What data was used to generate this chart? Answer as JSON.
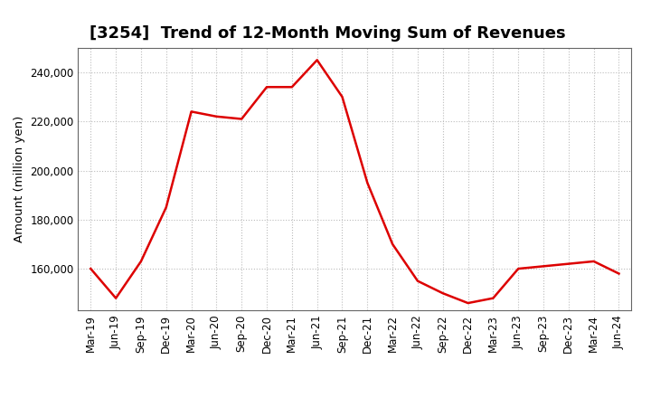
{
  "title": "[3254]  Trend of 12-Month Moving Sum of Revenues",
  "ylabel": "Amount (million yen)",
  "line_color": "#dd0000",
  "line_width": 1.8,
  "background_color": "#ffffff",
  "grid_color": "#bbbbbb",
  "x_labels": [
    "Mar-19",
    "Jun-19",
    "Sep-19",
    "Dec-19",
    "Mar-20",
    "Jun-20",
    "Sep-20",
    "Dec-20",
    "Mar-21",
    "Jun-21",
    "Sep-21",
    "Dec-21",
    "Mar-22",
    "Jun-22",
    "Sep-22",
    "Dec-22",
    "Mar-23",
    "Jun-23",
    "Sep-23",
    "Dec-23",
    "Mar-24",
    "Jun-24"
  ],
  "y_values": [
    160000,
    148000,
    163000,
    185000,
    224000,
    222000,
    221000,
    234000,
    234000,
    245000,
    230000,
    195000,
    170000,
    155000,
    150000,
    146000,
    148000,
    160000,
    161000,
    162000,
    163000,
    158000
  ],
  "ylim": [
    143000,
    250000
  ],
  "yticks": [
    160000,
    180000,
    200000,
    220000,
    240000
  ],
  "title_fontsize": 13,
  "tick_fontsize": 8.5,
  "ylabel_fontsize": 9.5
}
